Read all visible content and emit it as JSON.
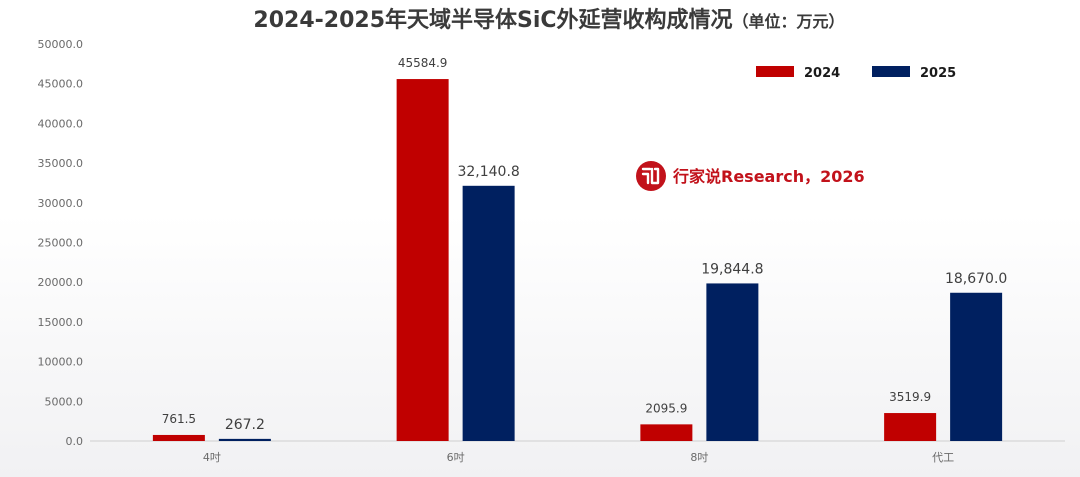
{
  "chart_data": {
    "type": "bar",
    "title": "2024-2025年天域半导体SiC外延营收构成情况",
    "title_unit": "（单位：万元）",
    "categories": [
      "4吋",
      "6吋",
      "8吋",
      "代工"
    ],
    "series": [
      {
        "name": "2024",
        "color": "#c00000",
        "values": [
          761.5,
          45584.9,
          2095.9,
          3519.9
        ],
        "labels": [
          "761.5",
          "45584.9",
          "2095.9",
          "3519.9"
        ]
      },
      {
        "name": "2025",
        "color": "#002060",
        "values": [
          267.2,
          32140.8,
          19844.8,
          18670.0
        ],
        "labels": [
          "267.2",
          "32,140.8",
          "19,844.8",
          "18,670.0"
        ]
      }
    ],
    "ylim": [
      0,
      50000
    ],
    "yticks": [
      "0.0",
      "5000.0",
      "10000.0",
      "15000.0",
      "20000.0",
      "25000.0",
      "30000.0",
      "35000.0",
      "40000.0",
      "45000.0",
      "50000.0"
    ],
    "xlabel": "",
    "ylabel": "",
    "grid": false,
    "legend_position": "top-right",
    "watermark": {
      "logo_text": "行家说",
      "text": "行家说Research，2026",
      "color": "#c2121b"
    }
  }
}
